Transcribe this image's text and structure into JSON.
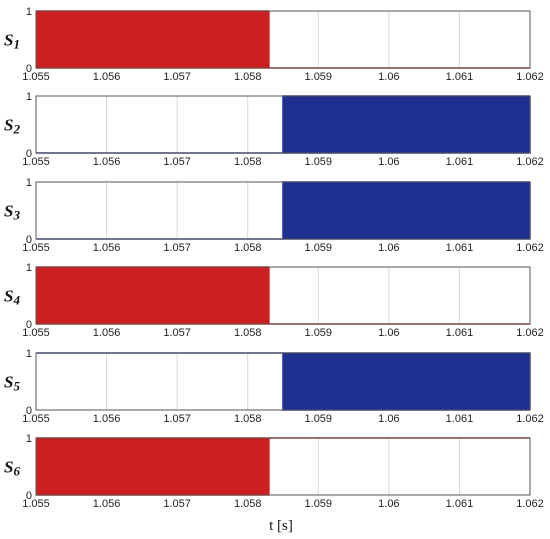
{
  "figure": {
    "xlabel": "t [s]"
  },
  "colors": {
    "red": "#cc1f1f",
    "blue": "#1f2f8f",
    "grid": "#d9d9d9",
    "axis": "#555555"
  },
  "chart_data": [
    {
      "type": "line",
      "ylabel": "S1",
      "color": "red",
      "pattern": "pwm_then_low",
      "switch_time": 1.0583,
      "xlim": [
        1.055,
        1.062
      ],
      "ylim": [
        0,
        1
      ],
      "xticks": [
        "1.055",
        "1.056",
        "1.057",
        "1.058",
        "1.059",
        "1.06",
        "1.061",
        "1.062"
      ],
      "yticks": [
        "0",
        "1"
      ],
      "grid": true
    },
    {
      "type": "line",
      "ylabel": "S2",
      "color": "blue",
      "pattern": "low_then_pwm",
      "switch_time": 1.0585,
      "xlim": [
        1.055,
        1.062
      ],
      "ylim": [
        0,
        1
      ],
      "xticks": [
        "1.055",
        "1.056",
        "1.057",
        "1.058",
        "1.059",
        "1.06",
        "1.061",
        "1.062"
      ],
      "yticks": [
        "0",
        "1"
      ],
      "grid": true
    },
    {
      "type": "line",
      "ylabel": "S3",
      "color": "blue",
      "pattern": "low_then_pwm",
      "switch_time": 1.0585,
      "xlim": [
        1.055,
        1.062
      ],
      "ylim": [
        0,
        1
      ],
      "xticks": [
        "1.055",
        "1.056",
        "1.057",
        "1.058",
        "1.059",
        "1.06",
        "1.061",
        "1.062"
      ],
      "yticks": [
        "0",
        "1"
      ],
      "grid": true
    },
    {
      "type": "line",
      "ylabel": "S4",
      "color": "red",
      "pattern": "pwm_then_low",
      "switch_time": 1.0583,
      "xlim": [
        1.055,
        1.062
      ],
      "ylim": [
        0,
        1
      ],
      "xticks": [
        "1.055",
        "1.056",
        "1.057",
        "1.058",
        "1.059",
        "1.06",
        "1.061",
        "1.062"
      ],
      "yticks": [
        "0",
        "1"
      ],
      "grid": true
    },
    {
      "type": "line",
      "ylabel": "S5",
      "color": "blue",
      "pattern": "high_then_pwm",
      "switch_time": 1.0585,
      "xlim": [
        1.055,
        1.062
      ],
      "ylim": [
        0,
        1
      ],
      "xticks": [
        "1.055",
        "1.056",
        "1.057",
        "1.058",
        "1.059",
        "1.06",
        "1.061",
        "1.062"
      ],
      "yticks": [
        "0",
        "1"
      ],
      "grid": true
    },
    {
      "type": "line",
      "ylabel": "S6",
      "color": "red",
      "pattern": "pwm_then_high",
      "switch_time": 1.0583,
      "xlim": [
        1.055,
        1.062
      ],
      "ylim": [
        0,
        1
      ],
      "xticks": [
        "1.055",
        "1.056",
        "1.057",
        "1.058",
        "1.059",
        "1.06",
        "1.061",
        "1.062"
      ],
      "yticks": [
        "0",
        "1"
      ],
      "grid": true
    }
  ]
}
